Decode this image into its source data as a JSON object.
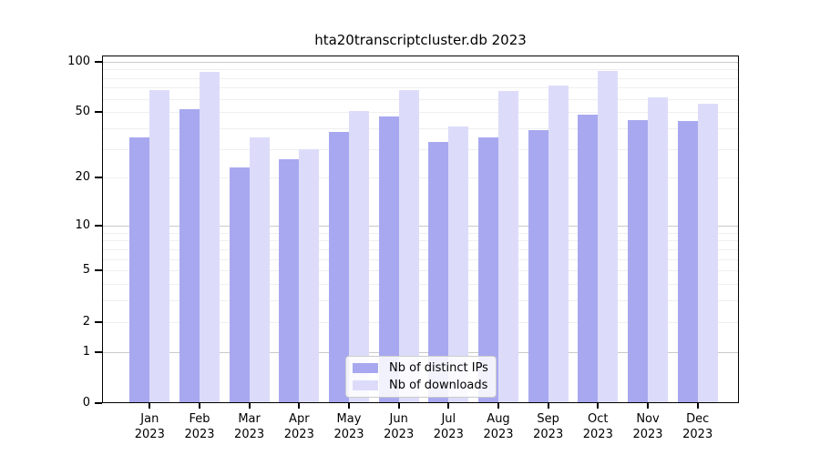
{
  "chart_data": {
    "type": "bar",
    "title": "hta20transcriptcluster.db 2023",
    "categories": [
      "Jan",
      "Feb",
      "Mar",
      "Apr",
      "May",
      "Jun",
      "Jul",
      "Aug",
      "Sep",
      "Oct",
      "Nov",
      "Dec"
    ],
    "year": "2023",
    "series": [
      {
        "name": "Nb of distinct IPs",
        "color": "#a8a8f0",
        "values": [
          35,
          52,
          23,
          26,
          38,
          47,
          33,
          35,
          39,
          48,
          45,
          44
        ]
      },
      {
        "name": "Nb of downloads",
        "color": "#dcdcfa",
        "values": [
          68,
          87,
          35,
          30,
          51,
          68,
          41,
          67,
          72,
          88,
          61,
          56
        ]
      }
    ],
    "yscale": "log1p",
    "ylim": [
      0,
      100
    ],
    "y_ticks": [
      100,
      50,
      20,
      10,
      5,
      2,
      1,
      0
    ],
    "y_major_gridlines": [
      1,
      10,
      100
    ],
    "y_minor_gridlines": [
      2,
      3,
      4,
      5,
      6,
      7,
      8,
      9,
      20,
      30,
      40,
      50,
      60,
      70,
      80,
      90
    ],
    "grid": true,
    "legend_position": "lower center",
    "colors": {
      "major_grid": "#c9c9c9",
      "minor_grid": "#efefef",
      "axis": "#000000",
      "background": "#ffffff"
    }
  }
}
